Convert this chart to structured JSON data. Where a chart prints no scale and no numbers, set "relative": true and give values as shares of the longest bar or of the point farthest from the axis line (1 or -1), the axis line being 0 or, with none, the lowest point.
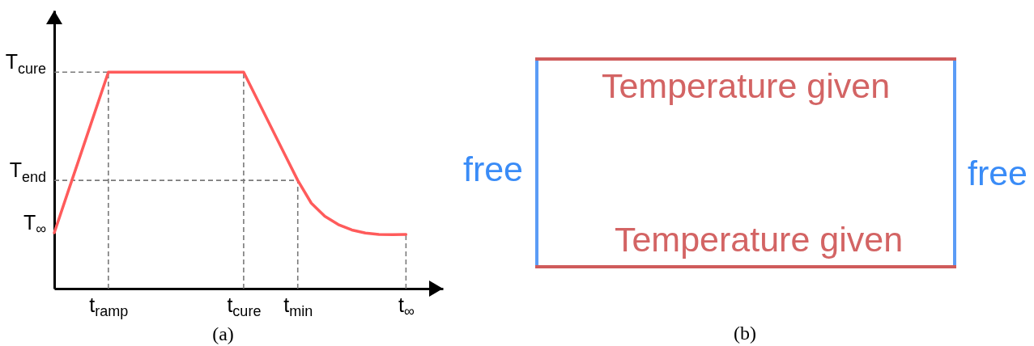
{
  "chart_data": [
    {
      "type": "line",
      "relative": true,
      "categories": [
        null,
        null,
        null,
        null,
        "t$_{ramp}$",
        null,
        null,
        null,
        null,
        null,
        null,
        null,
        null,
        null,
        "t$_{cure}$",
        null,
        null,
        null,
        "t$_{min}$",
        null,
        null,
        null,
        null,
        null,
        null,
        null,
        "t$_{∞}$"
      ],
      "series": [
        {
          "color": "#ff5b5b",
          "values": [
            0.258,
            0.444,
            0.629,
            0.815,
            1,
            1,
            1,
            1,
            1,
            1,
            1,
            1,
            1,
            1,
            1,
            0.875,
            0.75,
            0.625,
            0.5,
            0.395,
            0.334,
            0.296,
            0.271,
            0.257,
            0.25,
            0.249,
            0.25
          ]
        }
      ],
      "ref_lines": [
        {
          "axis": "y",
          "value": 1,
          "label": "T$_{cure}$",
          "color": "#7a7a7a",
          "line_style": "dashed"
        },
        {
          "axis": "y",
          "value": 0.5,
          "label": "T$_{end}$",
          "color": "#7a7a7a",
          "line_style": "dashed"
        },
        {
          "axis": "x",
          "value": "t$_{ramp}$",
          "color": "#7a7a7a",
          "line_style": "dashed"
        },
        {
          "axis": "x",
          "value": "t$_{cure}$",
          "color": "#7a7a7a",
          "line_style": "dashed"
        },
        {
          "axis": "x",
          "value": "t$_{min}$",
          "color": "#7a7a7a",
          "line_style": "dashed"
        },
        {
          "axis": "x",
          "value": "t$_{∞}$",
          "color": "#7a7a7a",
          "line_style": "dashed"
        }
      ],
      "annotations": [
        "T$_{∞}$"
      ],
      "xlabel": "(a)"
    },
    {
      "type": "other",
      "annotations": [
        "Temperature given",
        "Temperature given",
        "free",
        "free"
      ],
      "xlabel": "(b)"
    }
  ]
}
